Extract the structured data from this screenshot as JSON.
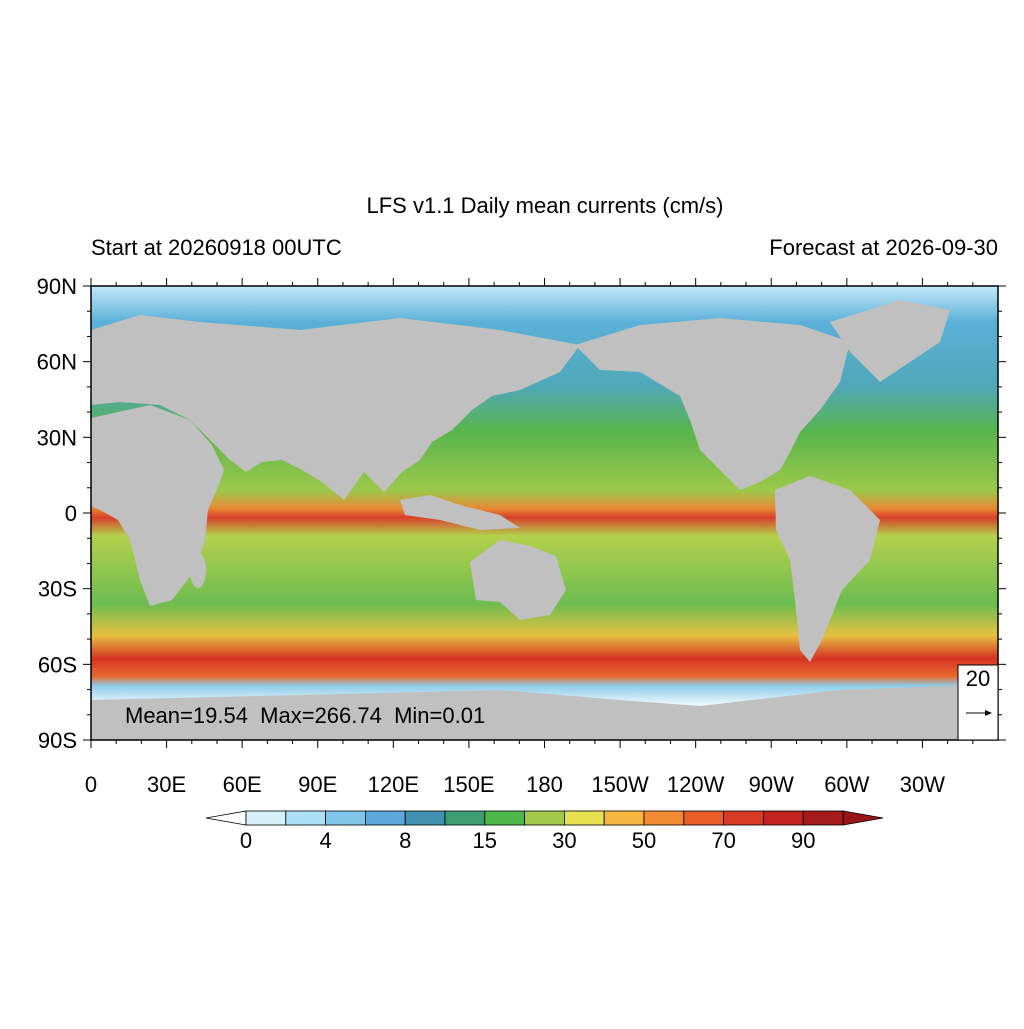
{
  "map": {
    "title": "LFS v1.1 Daily mean currents (cm/s)",
    "subtitle_left": "Start at 20260918 00UTC",
    "subtitle_right": "Forecast at 2026-09-30",
    "lat_labels": [
      "90N",
      "60N",
      "30N",
      "0",
      "30S",
      "60S",
      "90S"
    ],
    "lon_labels": [
      "0",
      "30E",
      "60E",
      "90E",
      "120E",
      "150E",
      "180",
      "150W",
      "120W",
      "90W",
      "60W",
      "30W"
    ],
    "stats": "Mean=19.54  Max=266.74  Min=0.01",
    "reference_vector": 20,
    "colorbar": {
      "labels": [
        0,
        4,
        8,
        15,
        30,
        50,
        70,
        90
      ],
      "colors": [
        "#d6eff9",
        "#aee0f5",
        "#82c5eb",
        "#5ea7dc",
        "#4291b0",
        "#3d9c72",
        "#4db849",
        "#a2c94a",
        "#e8e14f",
        "#f8b640",
        "#f28a31",
        "#e85d28",
        "#d83b24",
        "#c22321",
        "#a51a1b"
      ],
      "under_color": "#ffffff",
      "over_color": "#9a1515"
    }
  }
}
